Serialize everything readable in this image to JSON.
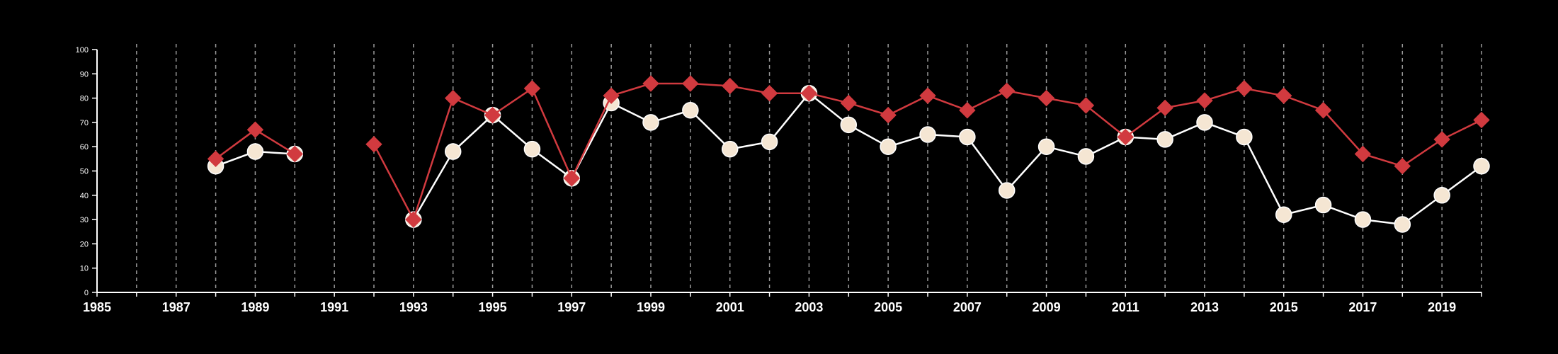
{
  "chart_data": {
    "type": "line",
    "title": "",
    "xlabel": "",
    "ylabel": "",
    "xlim": [
      1985,
      2020
    ],
    "ylim": [
      0,
      100
    ],
    "x_tick_labels": [
      "1985",
      "1987",
      "1989",
      "1991",
      "1993",
      "1995",
      "1997",
      "1999",
      "2001",
      "2003",
      "2005",
      "2007",
      "2009",
      "2011",
      "2013",
      "2015",
      "2017",
      "2019"
    ],
    "y_tick_labels": [
      "0",
      "10",
      "20",
      "30",
      "40",
      "50",
      "60",
      "70",
      "80",
      "90",
      "100"
    ],
    "grid": "vertical dashed lines at each year",
    "legend": "none",
    "x": [
      1985,
      1986,
      1987,
      1988,
      1989,
      1990,
      1991,
      1992,
      1993,
      1994,
      1995,
      1996,
      1997,
      1998,
      1999,
      2000,
      2001,
      2002,
      2003,
      2004,
      2005,
      2006,
      2007,
      2008,
      2009,
      2010,
      2011,
      2012,
      2013,
      2014,
      2015,
      2016,
      2017,
      2018,
      2019,
      2020
    ],
    "series": [
      {
        "marker": "circle",
        "color": "#ffffff",
        "marker_color": "#f5e6d3",
        "values": [
          null,
          null,
          null,
          52,
          58,
          57,
          null,
          null,
          30,
          58,
          73,
          59,
          47,
          78,
          70,
          75,
          59,
          62,
          82,
          69,
          60,
          65,
          64,
          42,
          60,
          56,
          64,
          63,
          70,
          64,
          32,
          36,
          30,
          28,
          40,
          52
        ]
      },
      {
        "marker": "diamond",
        "color": "#d13a3f",
        "marker_color": "#d13a3f",
        "values": [
          null,
          null,
          null,
          55,
          67,
          57,
          null,
          61,
          30,
          80,
          73,
          84,
          47,
          81,
          86,
          86,
          85,
          82,
          82,
          78,
          73,
          81,
          75,
          83,
          80,
          77,
          64,
          76,
          79,
          84,
          81,
          75,
          57,
          52,
          63,
          71
        ]
      }
    ]
  }
}
